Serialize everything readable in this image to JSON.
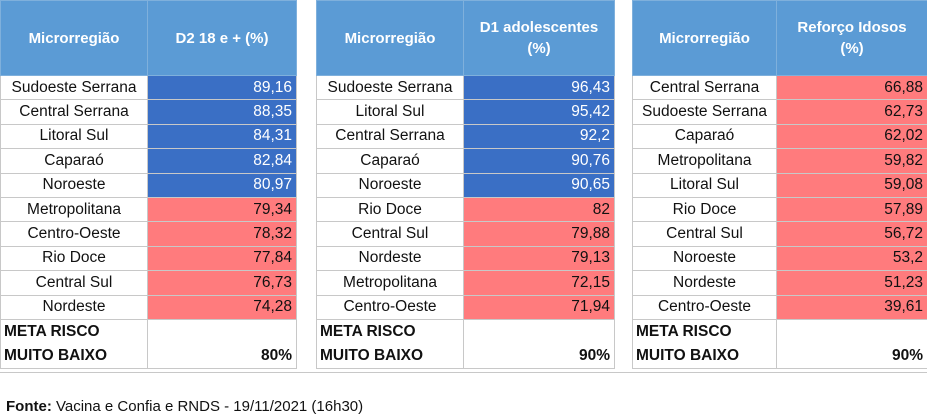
{
  "panels": [
    {
      "header_region": "Microrregião",
      "header_value": "D2 18 e + (%)",
      "rows": [
        {
          "name": "Sudoeste Serrana",
          "value": "89,16",
          "status": "good"
        },
        {
          "name": "Central Serrana",
          "value": "88,35",
          "status": "good"
        },
        {
          "name": "Litoral Sul",
          "value": "84,31",
          "status": "good"
        },
        {
          "name": "Caparaó",
          "value": "82,84",
          "status": "good"
        },
        {
          "name": "Noroeste",
          "value": "80,97",
          "status": "good"
        },
        {
          "name": "Metropolitana",
          "value": "79,34",
          "status": "bad"
        },
        {
          "name": "Centro-Oeste",
          "value": "78,32",
          "status": "bad"
        },
        {
          "name": "Rio Doce",
          "value": "77,84",
          "status": "bad"
        },
        {
          "name": "Central Sul",
          "value": "76,73",
          "status": "bad"
        },
        {
          "name": "Nordeste",
          "value": "74,28",
          "status": "bad"
        }
      ],
      "meta_label_1": "META RISCO",
      "meta_label_2": "MUITO BAIXO",
      "meta_value": "80%"
    },
    {
      "header_region": "Microrregião",
      "header_value": "D1 adolescentes (%)",
      "rows": [
        {
          "name": "Sudoeste Serrana",
          "value": "96,43",
          "status": "good"
        },
        {
          "name": "Litoral Sul",
          "value": "95,42",
          "status": "good"
        },
        {
          "name": "Central Serrana",
          "value": "92,2",
          "status": "good"
        },
        {
          "name": "Caparaó",
          "value": "90,76",
          "status": "good"
        },
        {
          "name": "Noroeste",
          "value": "90,65",
          "status": "good"
        },
        {
          "name": "Rio Doce",
          "value": "82",
          "status": "bad"
        },
        {
          "name": "Central Sul",
          "value": "79,88",
          "status": "bad"
        },
        {
          "name": "Nordeste",
          "value": "79,13",
          "status": "bad"
        },
        {
          "name": "Metropolitana",
          "value": "72,15",
          "status": "bad"
        },
        {
          "name": "Centro-Oeste",
          "value": "71,94",
          "status": "bad"
        }
      ],
      "meta_label_1": "META RISCO",
      "meta_label_2": "MUITO BAIXO",
      "meta_value": "90%"
    },
    {
      "header_region": "Microrregião",
      "header_value": "Reforço Idosos (%)",
      "rows": [
        {
          "name": "Central Serrana",
          "value": "66,88",
          "status": "bad"
        },
        {
          "name": "Sudoeste Serrana",
          "value": "62,73",
          "status": "bad"
        },
        {
          "name": "Caparaó",
          "value": "62,02",
          "status": "bad"
        },
        {
          "name": "Metropolitana",
          "value": "59,82",
          "status": "bad"
        },
        {
          "name": "Litoral Sul",
          "value": "59,08",
          "status": "bad"
        },
        {
          "name": "Rio Doce",
          "value": "57,89",
          "status": "bad"
        },
        {
          "name": "Central Sul",
          "value": "56,72",
          "status": "bad"
        },
        {
          "name": "Noroeste",
          "value": "53,2",
          "status": "bad"
        },
        {
          "name": "Nordeste",
          "value": "51,23",
          "status": "bad"
        },
        {
          "name": "Centro-Oeste",
          "value": "39,61",
          "status": "bad"
        }
      ],
      "meta_label_1": "META RISCO",
      "meta_label_2": "MUITO BAIXO",
      "meta_value": "90%"
    }
  ],
  "footer": {
    "label": "Fonte:",
    "text": " Vacina e Confia e RNDS - 19/11/2021 (16h30)"
  },
  "colors": {
    "header": "#5b9bd5",
    "above_goal": "#3a6fc5",
    "below_goal": "#ff7b7d"
  }
}
